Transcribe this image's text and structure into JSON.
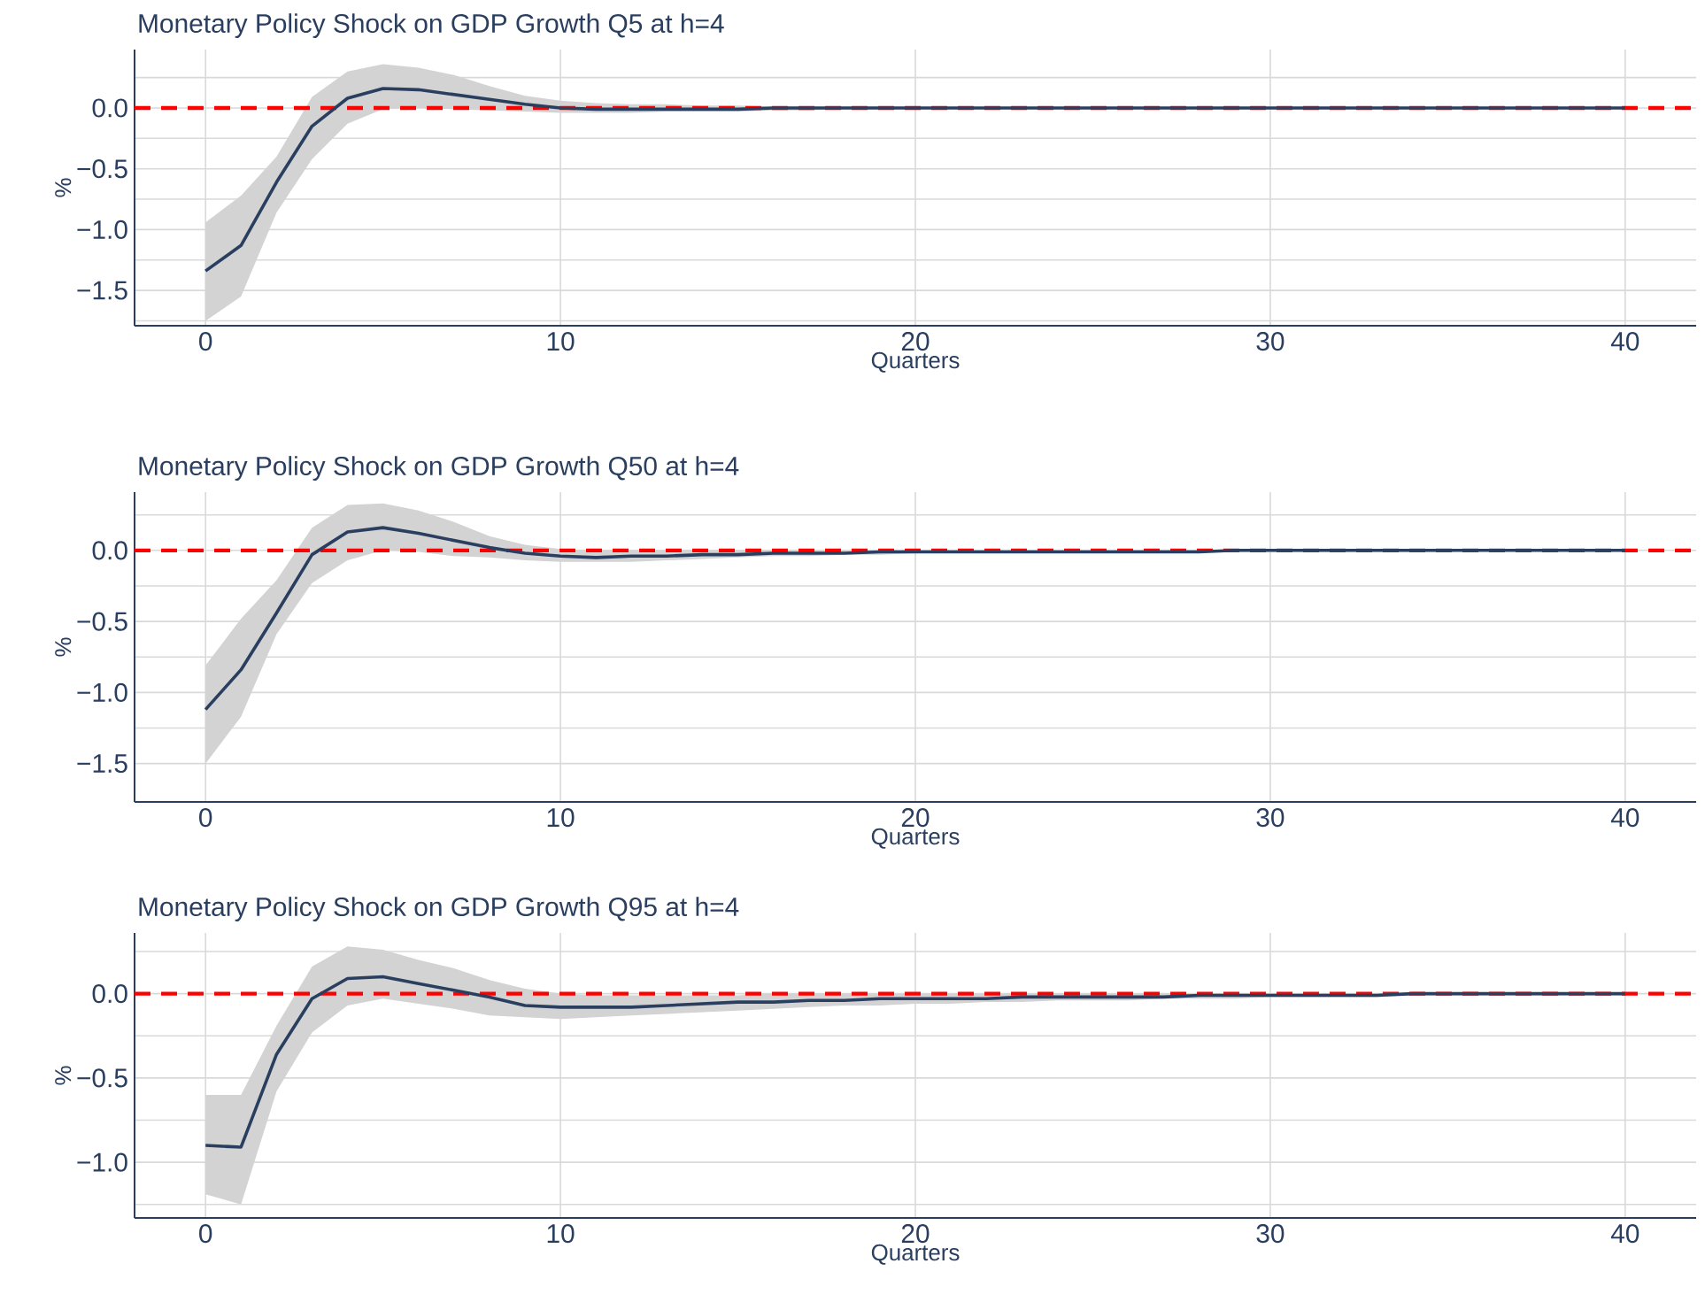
{
  "chart_data": [
    {
      "type": "line",
      "title": "Monetary Policy Shock on GDP Growth Q5 at h=4",
      "xlabel": "Quarters",
      "ylabel": "%",
      "grid": true,
      "x": [
        0,
        1,
        2,
        3,
        4,
        5,
        6,
        7,
        8,
        9,
        10,
        11,
        12,
        13,
        14,
        15,
        16,
        17,
        18,
        19,
        20,
        21,
        22,
        23,
        24,
        25,
        26,
        27,
        28,
        29,
        30,
        31,
        32,
        33,
        34,
        35,
        36,
        37,
        38,
        39,
        40
      ],
      "series": [
        {
          "color": "#2a3f5f",
          "values": [
            -1.34,
            -1.13,
            -0.61,
            -0.15,
            0.08,
            0.16,
            0.15,
            0.11,
            0.07,
            0.03,
            0.0,
            -0.01,
            -0.01,
            -0.01,
            -0.01,
            -0.01,
            0,
            0,
            0,
            0,
            0,
            0,
            0,
            0,
            0,
            0,
            0,
            0,
            0,
            0,
            0,
            0,
            0,
            0,
            0,
            0,
            0,
            0,
            0,
            0,
            0
          ],
          "lower": [
            -1.75,
            -1.55,
            -0.86,
            -0.42,
            -0.13,
            -0.01,
            0.0,
            -0.01,
            -0.02,
            -0.03,
            -0.04,
            -0.04,
            -0.04,
            -0.03,
            -0.03,
            -0.03,
            -0.02,
            -0.02,
            -0.01,
            -0.01,
            -0.01,
            0,
            0,
            0,
            0,
            0,
            0,
            0,
            0,
            0,
            0,
            0,
            0,
            0,
            0,
            0,
            0,
            0,
            0,
            0,
            0
          ],
          "upper": [
            -0.94,
            -0.72,
            -0.4,
            0.09,
            0.3,
            0.36,
            0.33,
            0.27,
            0.18,
            0.1,
            0.06,
            0.04,
            0.03,
            0.03,
            0.02,
            0.02,
            0.01,
            0.01,
            0.01,
            0.01,
            0.01,
            0,
            0,
            0,
            0,
            0,
            0,
            0,
            0,
            0,
            0,
            0,
            0,
            0,
            0,
            0,
            0,
            0,
            0,
            0,
            0
          ]
        }
      ],
      "ref_lines": [
        {
          "axis": "y",
          "value": 0,
          "color": "#ff0000",
          "line_style": "dashed"
        }
      ],
      "xlim": [
        -2,
        42
      ],
      "ylim": [
        -1.79,
        0.48
      ],
      "xticks": [
        0,
        10,
        20,
        30,
        40
      ],
      "yticks": [
        {
          "value": 0.25,
          "label": null
        },
        {
          "value": 0,
          "label": "0.0"
        },
        {
          "value": -0.25,
          "label": null
        },
        {
          "value": -0.5,
          "label": "−0.5"
        },
        {
          "value": -0.75,
          "label": null
        },
        {
          "value": -1,
          "label": "−1.0"
        },
        {
          "value": -1.25,
          "label": null
        },
        {
          "value": -1.5,
          "label": "−1.5"
        },
        {
          "value": -1.75,
          "label": null
        }
      ]
    },
    {
      "type": "line",
      "title": "Monetary Policy Shock on GDP Growth Q50 at h=4",
      "xlabel": "Quarters",
      "ylabel": "%",
      "grid": true,
      "x": [
        0,
        1,
        2,
        3,
        4,
        5,
        6,
        7,
        8,
        9,
        10,
        11,
        12,
        13,
        14,
        15,
        16,
        17,
        18,
        19,
        20,
        21,
        22,
        23,
        24,
        25,
        26,
        27,
        28,
        29,
        30,
        31,
        32,
        33,
        34,
        35,
        36,
        37,
        38,
        39,
        40
      ],
      "series": [
        {
          "color": "#2a3f5f",
          "values": [
            -1.12,
            -0.84,
            -0.44,
            -0.03,
            0.13,
            0.16,
            0.12,
            0.07,
            0.02,
            -0.02,
            -0.04,
            -0.05,
            -0.04,
            -0.04,
            -0.03,
            -0.03,
            -0.02,
            -0.02,
            -0.02,
            -0.01,
            -0.01,
            -0.01,
            -0.01,
            -0.01,
            -0.01,
            -0.01,
            -0.01,
            -0.01,
            -0.01,
            0,
            0,
            0,
            0,
            0,
            0,
            0,
            0,
            0,
            0,
            0,
            0
          ],
          "lower": [
            -1.5,
            -1.17,
            -0.59,
            -0.23,
            -0.07,
            0.0,
            -0.01,
            -0.04,
            -0.05,
            -0.07,
            -0.08,
            -0.08,
            -0.08,
            -0.07,
            -0.06,
            -0.05,
            -0.04,
            -0.04,
            -0.03,
            -0.03,
            -0.02,
            -0.02,
            -0.02,
            -0.02,
            -0.02,
            -0.02,
            -0.01,
            -0.01,
            -0.01,
            -0.01,
            -0.01,
            -0.01,
            -0.01,
            -0.01,
            -0.01,
            -0.01,
            0,
            0,
            0,
            0,
            0
          ],
          "upper": [
            -0.81,
            -0.48,
            -0.21,
            0.16,
            0.32,
            0.33,
            0.28,
            0.2,
            0.1,
            0.04,
            0.01,
            0,
            0,
            0,
            0,
            0,
            0,
            0,
            0,
            0,
            0,
            0,
            0,
            0,
            0,
            0,
            0,
            0,
            0,
            0,
            0,
            0,
            0,
            0,
            0,
            0,
            0,
            0,
            0,
            0,
            0
          ]
        }
      ],
      "ref_lines": [
        {
          "axis": "y",
          "value": 0,
          "color": "#ff0000",
          "line_style": "dashed"
        }
      ],
      "xlim": [
        -2,
        42
      ],
      "ylim": [
        -1.77,
        0.41
      ],
      "xticks": [
        0,
        10,
        20,
        30,
        40
      ],
      "yticks": [
        {
          "value": 0.25,
          "label": null
        },
        {
          "value": 0,
          "label": "0.0"
        },
        {
          "value": -0.25,
          "label": null
        },
        {
          "value": -0.5,
          "label": "−0.5"
        },
        {
          "value": -0.75,
          "label": null
        },
        {
          "value": -1,
          "label": "−1.0"
        },
        {
          "value": -1.25,
          "label": null
        },
        {
          "value": -1.5,
          "label": "−1.5"
        }
      ]
    },
    {
      "type": "line",
      "title": "Monetary Policy Shock on GDP Growth Q95 at h=4",
      "xlabel": "Quarters",
      "ylabel": "%",
      "grid": true,
      "x": [
        0,
        1,
        2,
        3,
        4,
        5,
        6,
        7,
        8,
        9,
        10,
        11,
        12,
        13,
        14,
        15,
        16,
        17,
        18,
        19,
        20,
        21,
        22,
        23,
        24,
        25,
        26,
        27,
        28,
        29,
        30,
        31,
        32,
        33,
        34,
        35,
        36,
        37,
        38,
        39,
        40
      ],
      "series": [
        {
          "color": "#2a3f5f",
          "values": [
            -0.9,
            -0.91,
            -0.36,
            -0.03,
            0.09,
            0.1,
            0.06,
            0.02,
            -0.02,
            -0.07,
            -0.08,
            -0.08,
            -0.08,
            -0.07,
            -0.06,
            -0.05,
            -0.05,
            -0.04,
            -0.04,
            -0.03,
            -0.03,
            -0.03,
            -0.03,
            -0.02,
            -0.02,
            -0.02,
            -0.02,
            -0.02,
            -0.01,
            -0.01,
            -0.01,
            -0.01,
            -0.01,
            -0.01,
            0,
            0,
            0,
            0,
            0,
            0,
            0
          ],
          "lower": [
            -1.19,
            -1.25,
            -0.58,
            -0.23,
            -0.07,
            -0.03,
            -0.06,
            -0.09,
            -0.13,
            -0.14,
            -0.15,
            -0.14,
            -0.13,
            -0.12,
            -0.11,
            -0.1,
            -0.09,
            -0.08,
            -0.07,
            -0.07,
            -0.06,
            -0.06,
            -0.05,
            -0.05,
            -0.04,
            -0.04,
            -0.04,
            -0.03,
            -0.03,
            -0.03,
            -0.02,
            -0.02,
            -0.02,
            -0.02,
            -0.01,
            -0.01,
            -0.01,
            -0.01,
            -0.01,
            -0.01,
            -0.01
          ],
          "upper": [
            -0.6,
            -0.6,
            -0.19,
            0.16,
            0.28,
            0.26,
            0.2,
            0.15,
            0.08,
            0.03,
            0.0,
            -0.01,
            -0.01,
            -0.01,
            -0.01,
            -0.01,
            0,
            0,
            0,
            0,
            0,
            0,
            0,
            0,
            0,
            0,
            0,
            0,
            0,
            0,
            0,
            0,
            0,
            0,
            0,
            0,
            0,
            0,
            0,
            0,
            0
          ]
        }
      ],
      "ref_lines": [
        {
          "axis": "y",
          "value": 0,
          "color": "#ff0000",
          "line_style": "dashed"
        }
      ],
      "xlim": [
        -2,
        42
      ],
      "ylim": [
        -1.33,
        0.36
      ],
      "xticks": [
        0,
        10,
        20,
        30,
        40
      ],
      "yticks": [
        {
          "value": 0.25,
          "label": null
        },
        {
          "value": 0,
          "label": "0.0"
        },
        {
          "value": -0.25,
          "label": null
        },
        {
          "value": -0.5,
          "label": "−0.5"
        },
        {
          "value": -0.75,
          "label": null
        },
        {
          "value": -1,
          "label": "−1.0"
        },
        {
          "value": -1.25,
          "label": null
        }
      ]
    }
  ]
}
